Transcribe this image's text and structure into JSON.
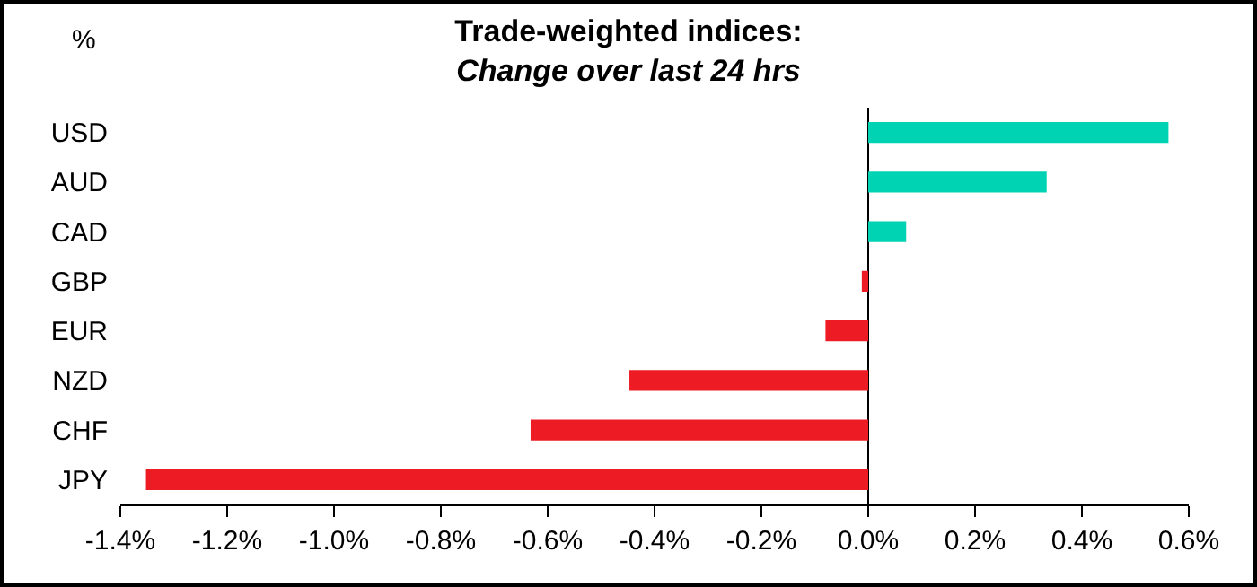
{
  "chart_data": {
    "type": "bar",
    "orientation": "horizontal",
    "title": "Trade-weighted indices:",
    "subtitle": "Change over last 24 hrs",
    "categories": [
      "USD",
      "AUD",
      "CAD",
      "GBP",
      "EUR",
      "NZD",
      "CHF",
      "JPY"
    ],
    "values": [
      0.562,
      0.334,
      0.071,
      -0.012,
      -0.08,
      -0.447,
      -0.632,
      -1.352
    ],
    "colors": [
      "#00d2b4",
      "#00d2b4",
      "#00d2b4",
      "#ed1c24",
      "#ed1c24",
      "#ed1c24",
      "#ed1c24",
      "#ed1c24"
    ],
    "xlim": [
      -1.4,
      0.6
    ],
    "xticks": [
      {
        "value": -1.4,
        "label": "-1.4%"
      },
      {
        "value": -1.2,
        "label": "-1.2%"
      },
      {
        "value": -1.0,
        "label": "-1.0%"
      },
      {
        "value": -0.8,
        "label": "-0.8%"
      },
      {
        "value": -0.6,
        "label": "-0.6%"
      },
      {
        "value": -0.4,
        "label": "-0.4%"
      },
      {
        "value": -0.2,
        "label": "-0.2%"
      },
      {
        "value": 0,
        "label": "0.0%"
      },
      {
        "value": 0.2,
        "label": "0.2%"
      },
      {
        "value": 0.4,
        "label": "0.4%"
      },
      {
        "value": 0.6,
        "label": "0.6%"
      }
    ],
    "annotations": [
      "%"
    ],
    "legend": false
  }
}
